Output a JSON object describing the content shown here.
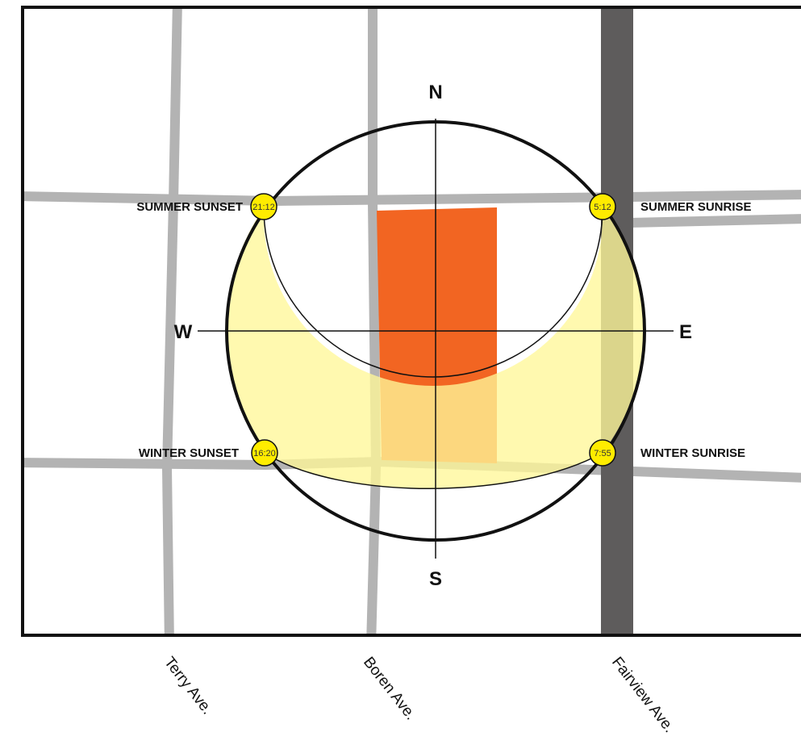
{
  "directions": {
    "north": "N",
    "south": "S",
    "east": "E",
    "west": "W"
  },
  "points": {
    "summer_sunset": {
      "label": "SUMMER SUNSET",
      "time": "21:12"
    },
    "summer_sunrise": {
      "label": "SUMMER SUNRISE",
      "time": "5:12"
    },
    "winter_sunset": {
      "label": "WINTER SUNSET",
      "time": "16:20"
    },
    "winter_sunrise": {
      "label": "WINTER SUNRISE",
      "time": "7:55"
    }
  },
  "streets": [
    "Terry Ave.",
    "Boren Ave.",
    "Fairview Ave."
  ],
  "colors": {
    "building": "#f26522",
    "sun_band": "#fff799",
    "marker": "#ffec00",
    "minor_street": "#b3b3b3",
    "major_street": "#5e5c5c"
  }
}
